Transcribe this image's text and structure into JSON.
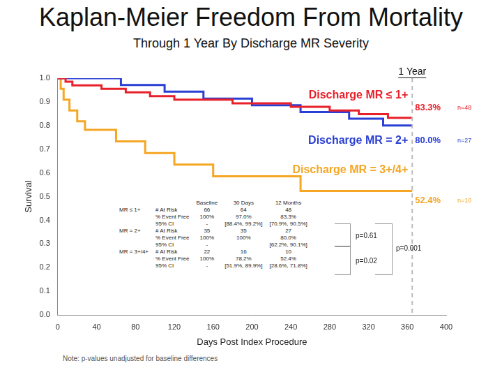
{
  "chart_data": {
    "type": "line",
    "title": "Kaplan-Meier Freedom From Mortality",
    "subtitle": "Through 1 Year By Discharge MR Severity",
    "x_label": "Days Post Index Procedure",
    "y_label": "Survival",
    "xlim": [
      0,
      400
    ],
    "xticks": [
      0,
      40,
      80,
      120,
      160,
      200,
      240,
      280,
      320,
      360,
      400
    ],
    "ylim": [
      0,
      1
    ],
    "yticks": [
      {
        "value": 0,
        "label": "0.0"
      },
      0.1,
      0.2,
      0.3,
      0.4,
      0.5,
      0.6,
      0.7,
      0.8,
      0.9,
      {
        "value": 1,
        "label": "1.0"
      }
    ],
    "grid": false,
    "legend": "none",
    "line_style": "steps",
    "series": [
      {
        "name": "Discharge MR ≤ 1+",
        "color": "#e8202a",
        "x": [
          0,
          8,
          15,
          45,
          70,
          95,
          120,
          180,
          240,
          280,
          310,
          340,
          365
        ],
        "values": [
          1,
          0.985,
          0.97,
          0.955,
          0.94,
          0.924,
          0.909,
          0.894,
          0.879,
          0.864,
          0.848,
          0.833,
          0.833
        ],
        "end_label": "83.3%",
        "n_label": "n=48"
      },
      {
        "name": "Discharge MR = 2+",
        "color": "#2a3fd4",
        "x": [
          0,
          65,
          110,
          150,
          200,
          250,
          300,
          335,
          365
        ],
        "values": [
          1,
          0.971,
          0.943,
          0.914,
          0.886,
          0.857,
          0.829,
          0.8,
          0.8
        ],
        "end_label": "80.0%",
        "n_label": "n=27"
      },
      {
        "name": "Discharge MR = 3+/4+",
        "color": "#f5a623",
        "x": [
          0,
          3,
          6,
          12,
          20,
          28,
          60,
          90,
          120,
          160,
          250,
          365
        ],
        "values": [
          1,
          0.955,
          0.909,
          0.864,
          0.818,
          0.782,
          0.733,
          0.684,
          0.635,
          0.586,
          0.524,
          0.524
        ],
        "end_label": "52.4%",
        "n_label": "n=10"
      }
    ],
    "one_year": {
      "x": 365,
      "label": "1 Year"
    },
    "p_values": [
      "p=0.61",
      "p=0.02",
      "p=0.001"
    ],
    "note": "Note: p-values unadjusted for baseline differences",
    "table": {
      "header": [
        "Baseline",
        "30 Days",
        "12 Months"
      ],
      "groups": [
        {
          "name": "MR ≤ 1+",
          "rows": [
            [
              "# At Risk",
              "66",
              "64",
              "48"
            ],
            [
              "% Event Free",
              "100%",
              "97.0%",
              "83.3%"
            ],
            [
              "95% CI",
              "-",
              "[88.4%, 99.2%]",
              "[70.9%, 90.5%]"
            ]
          ]
        },
        {
          "name": "MR = 2+",
          "rows": [
            [
              "# At Risk",
              "35",
              "35",
              "27"
            ],
            [
              "% Event Free",
              "100%",
              "100%",
              "80.0%"
            ],
            [
              "95% CI",
              "-",
              null,
              "[62.2%, 90.1%]"
            ]
          ]
        },
        {
          "name": "MR = 3+/4+",
          "rows": [
            [
              "# At Risk",
              "22",
              "16",
              "10"
            ],
            [
              "% Event Free",
              "100%",
              "78.2%",
              "52.4%"
            ],
            [
              "95% CI",
              "-",
              "[51.9%, 89.9%]",
              "[28.6%, 71.8%]"
            ]
          ]
        }
      ]
    }
  }
}
